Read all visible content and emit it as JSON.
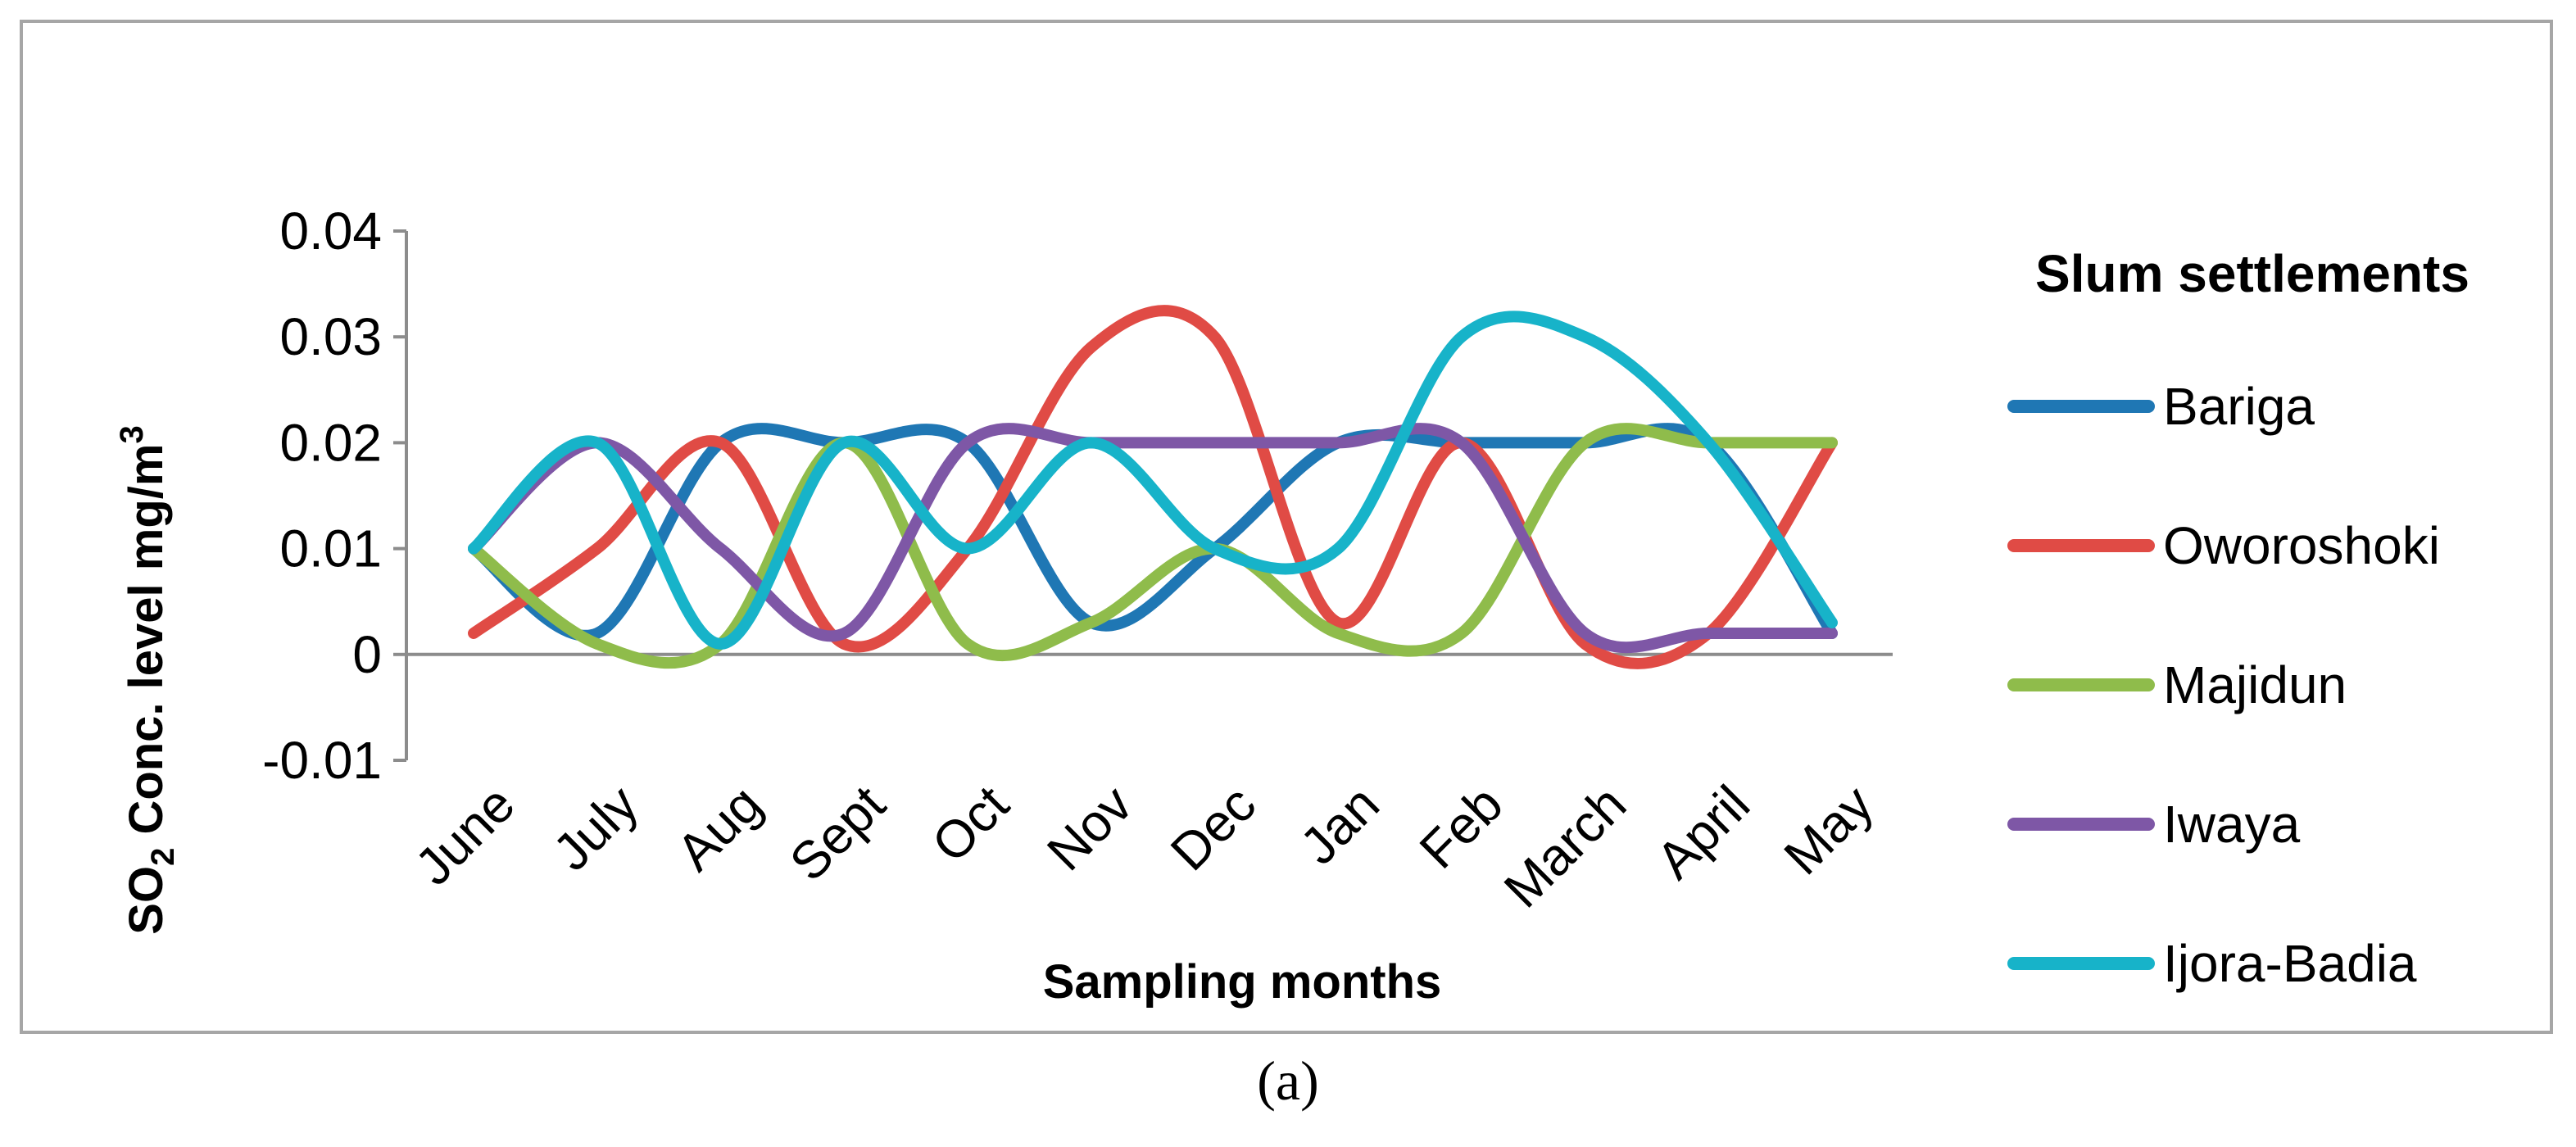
{
  "chart_data": {
    "type": "line",
    "smooth": true,
    "title": "",
    "xlabel": "Sampling months",
    "ylabel_parts": [
      "SO",
      "2",
      " Conc. level mg/m",
      "3"
    ],
    "categories": [
      "June",
      "July",
      "Aug",
      "Sept",
      "Oct",
      "Nov",
      "Dec",
      "Jan",
      "Feb",
      "March",
      "April",
      "May"
    ],
    "yticks": [
      "0.04",
      "0.03",
      "0.02",
      "0.01",
      "0",
      "-0.01"
    ],
    "ylim": [
      -0.01,
      0.04
    ],
    "legend_title": "Slum settlements",
    "legend_position": "right",
    "series": [
      {
        "name": "Bariga",
        "color": "#1f77b4",
        "values": [
          0.01,
          0.002,
          0.02,
          0.02,
          0.02,
          0.003,
          0.01,
          0.02,
          0.02,
          0.02,
          0.02,
          0.002
        ]
      },
      {
        "name": "Oworoshoki",
        "color": "#e04b45",
        "values": [
          0.002,
          0.01,
          0.02,
          0.001,
          0.01,
          0.029,
          0.03,
          0.003,
          0.02,
          0.001,
          0.002,
          0.02
        ]
      },
      {
        "name": "Majidun",
        "color": "#8fbc4b",
        "values": [
          0.01,
          0.001,
          0.001,
          0.02,
          0.001,
          0.003,
          0.01,
          0.002,
          0.002,
          0.02,
          0.02,
          0.02
        ]
      },
      {
        "name": "Iwaya",
        "color": "#7e57a6",
        "values": [
          0.01,
          0.02,
          0.01,
          0.002,
          0.02,
          0.02,
          0.02,
          0.02,
          0.02,
          0.002,
          0.002,
          0.002
        ]
      },
      {
        "name": "Ijora-Badia",
        "color": "#17b3c9",
        "values": [
          0.01,
          0.02,
          0.001,
          0.02,
          0.01,
          0.02,
          0.01,
          0.01,
          0.03,
          0.03,
          0.02,
          0.003
        ]
      }
    ]
  },
  "caption": "(a)"
}
